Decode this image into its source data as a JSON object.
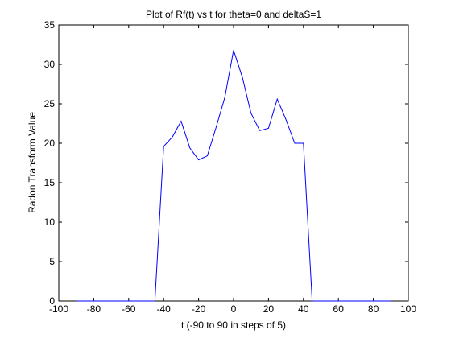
{
  "chart_data": {
    "type": "line",
    "title": "Plot of Rf(t) vs t for theta=0 and deltaS=1",
    "xlabel": "t (-90 to 90 in steps of 5)",
    "ylabel": "Radon Transform Value",
    "xlim": [
      -100,
      100
    ],
    "ylim": [
      0,
      35
    ],
    "xticks": [
      -100,
      -80,
      -60,
      -40,
      -20,
      0,
      20,
      40,
      60,
      80,
      100
    ],
    "yticks": [
      0,
      5,
      10,
      15,
      20,
      25,
      30,
      35
    ],
    "grid": false,
    "legend": "none",
    "line_color": "#0000ff",
    "series": [
      {
        "x": [
          -90,
          -85,
          -80,
          -75,
          -70,
          -65,
          -60,
          -55,
          -50,
          -45,
          -40,
          -35,
          -30,
          -25,
          -20,
          -15,
          -10,
          -5,
          0,
          5,
          10,
          15,
          20,
          25,
          30,
          35,
          40,
          45,
          50,
          55,
          60,
          65,
          70,
          75,
          80,
          85,
          90
        ],
        "y": [
          0,
          0,
          0,
          0,
          0,
          0,
          0,
          0,
          0,
          0,
          19.6,
          20.8,
          22.8,
          19.4,
          17.9,
          18.4,
          22.0,
          25.8,
          31.8,
          28.4,
          23.8,
          21.6,
          21.9,
          25.6,
          23.0,
          20.0,
          20.0,
          0,
          0,
          0,
          0,
          0,
          0,
          0,
          0,
          0,
          0
        ]
      }
    ]
  }
}
